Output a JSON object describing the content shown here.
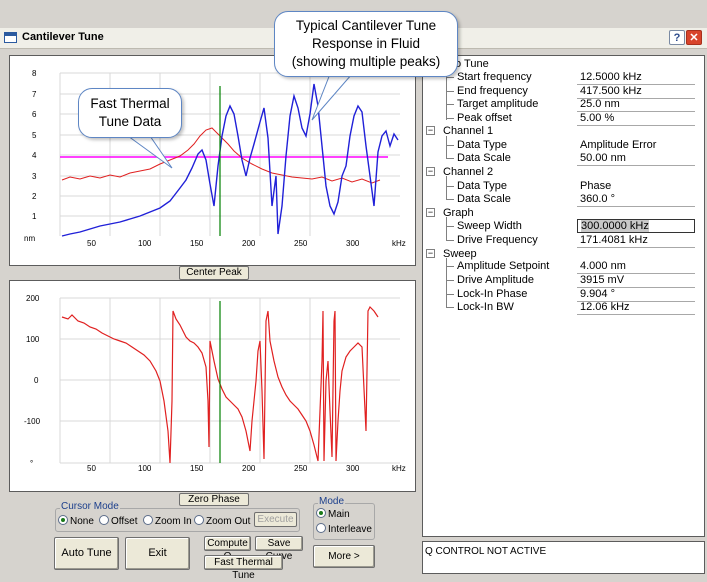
{
  "window": {
    "title": "Cantilever Tune",
    "help_label": "?",
    "close_label": "✕"
  },
  "callouts": {
    "typical": [
      "Typical Cantilever Tune",
      "Response in Fluid",
      "(showing multiple peaks)"
    ],
    "thermal": [
      "Fast Thermal",
      "Tune Data"
    ]
  },
  "graph1": {
    "y_ticks": [
      "8",
      "7",
      "6",
      "5",
      "4",
      "3",
      "2",
      "1"
    ],
    "y_unit": "nm",
    "x_ticks": [
      "50",
      "100",
      "150",
      "200",
      "250",
      "300"
    ],
    "x_unit": "kHz"
  },
  "graph2": {
    "y_ticks": [
      "200",
      "100",
      "0",
      "-100",
      "°"
    ],
    "x_ticks": [
      "50",
      "100",
      "150",
      "200",
      "250",
      "300"
    ],
    "x_unit": "kHz"
  },
  "buttons": {
    "center_peak": "Center Peak",
    "zero_phase": "Zero Phase",
    "execute": "Execute",
    "auto_tune": "Auto Tune",
    "exit": "Exit",
    "compute_q": "Compute Q",
    "save_curve": "Save Curve",
    "fast_thermal_tune": "Fast Thermal Tune",
    "more": "More >"
  },
  "cursor_mode": {
    "title": "Cursor Mode",
    "options": [
      "None",
      "Offset",
      "Zoom In",
      "Zoom Out"
    ],
    "selected": "None"
  },
  "mode": {
    "title": "Mode",
    "options": [
      "Main",
      "Interleave"
    ],
    "selected": "Main"
  },
  "properties": {
    "auto_tune": {
      "header": "to Tune",
      "rows": [
        {
          "label": "Start frequency",
          "value": "12.5000 kHz"
        },
        {
          "label": "End frequency",
          "value": "417.500 kHz"
        },
        {
          "label": "Target amplitude",
          "value": "25.0 nm"
        },
        {
          "label": "Peak offset",
          "value": "5.00 %"
        }
      ]
    },
    "channel1": {
      "header": "Channel 1",
      "rows": [
        {
          "label": "Data Type",
          "value": "Amplitude Error"
        },
        {
          "label": "Data Scale",
          "value": "50.00 nm"
        }
      ]
    },
    "channel2": {
      "header": "Channel 2",
      "rows": [
        {
          "label": "Data Type",
          "value": "Phase"
        },
        {
          "label": "Data Scale",
          "value": "360.0 °"
        }
      ]
    },
    "graph": {
      "header": "Graph",
      "rows": [
        {
          "label": "Sweep Width",
          "value": "300.0000 kHz"
        },
        {
          "label": "Drive Frequency",
          "value": "171.4081 kHz"
        }
      ]
    },
    "sweep": {
      "header": "Sweep",
      "rows": [
        {
          "label": "Amplitude Setpoint",
          "value": "4.000 nm"
        },
        {
          "label": "Drive Amplitude",
          "value": "3915 mV"
        },
        {
          "label": "Lock-In Phase",
          "value": "9.904 °"
        },
        {
          "label": "Lock-In BW",
          "value": "12.06 kHz"
        }
      ]
    }
  },
  "status": "Q CONTROL NOT ACTIVE",
  "colors": {
    "amplitude": "#2020d8",
    "phase": "#e02020",
    "thermal": "#e02020",
    "setpoint": "#ff00ff",
    "drive_marker": "#008000"
  }
}
